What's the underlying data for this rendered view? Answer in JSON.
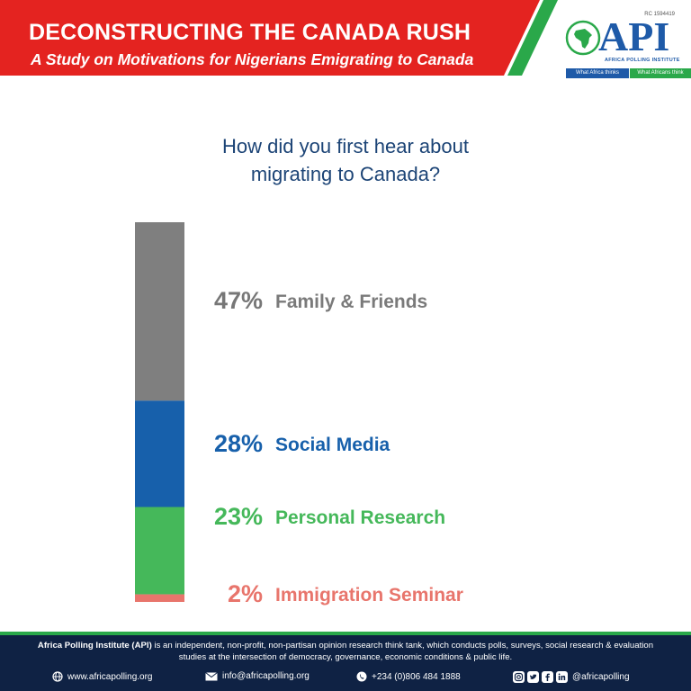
{
  "banner": {
    "title": "DECONSTRUCTING THE CANADA RUSH",
    "subtitle": "A Study on Motivations for Nigerians Emigrating to Canada"
  },
  "logo": {
    "rc": "RC 1594419",
    "name": "API",
    "full_name": "AFRICA POLLING INSTITUTE",
    "tag_left": "What Africa thinks",
    "tag_right": "What Africans think"
  },
  "question": {
    "line1": "How did you first hear about",
    "line2": "migrating to Canada?"
  },
  "chart_data": {
    "type": "bar",
    "orientation": "stacked-vertical",
    "categories": [
      "Family & Friends",
      "Social Media",
      "Personal Research",
      "Immigration Seminar"
    ],
    "values": [
      47,
      28,
      23,
      2
    ],
    "labels": [
      "47%",
      "28%",
      "23%",
      "2%"
    ],
    "colors": [
      "#7f7f7f",
      "#1760ab",
      "#45b85a",
      "#e8756c"
    ],
    "unit": "%"
  },
  "footer": {
    "org": "Africa Polling Institute (API)",
    "desc": " is an independent, non-profit, non-partisan opinion research think tank, which conducts polls, surveys, social research & evaluation studies at the intersection of democracy, governance, economic conditions & public life.",
    "website": "www.africapolling.org",
    "email": "info@africapolling.org",
    "phone": "+234 (0)806 484 1888",
    "social": "@africapolling"
  }
}
